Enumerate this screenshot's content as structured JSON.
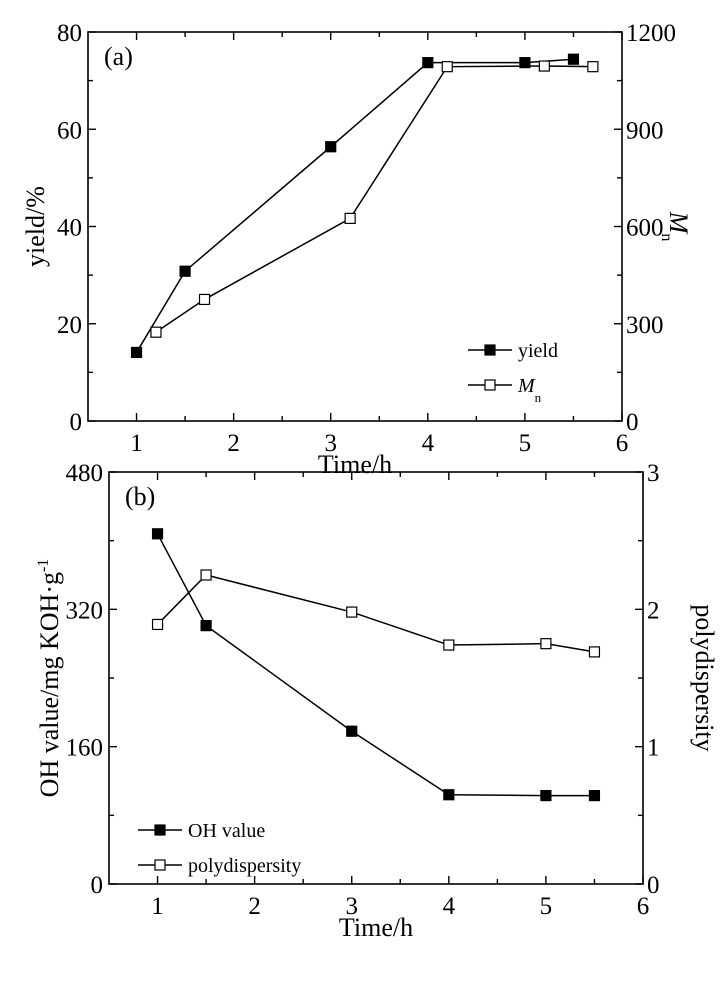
{
  "chart_data": [
    {
      "type": "line",
      "panel_label": "(a)",
      "xlabel": "Time/h",
      "ylabel": "yield/%",
      "y2label": "M",
      "y2label_sub": "n",
      "xlim": [
        0.5,
        6
      ],
      "ylim": [
        0,
        80
      ],
      "y2lim": [
        0,
        1200
      ],
      "xticks": [
        "1",
        "2",
        "3",
        "4",
        "5",
        "6"
      ],
      "yticks": [
        "0",
        "20",
        "40",
        "60",
        "80"
      ],
      "y2ticks": [
        "0",
        "300",
        "600",
        "900",
        "1200"
      ],
      "legend_position": "bottom-right",
      "series": [
        {
          "name": "yield",
          "axis": "left",
          "marker": "filled-square",
          "x": [
            1,
            1.5,
            3,
            4,
            5,
            5.5
          ],
          "y": [
            14.1,
            30.8,
            56.4,
            73.7,
            73.7,
            74.4
          ]
        },
        {
          "name": "M",
          "name_sub": "n",
          "axis": "right",
          "marker": "open-square",
          "x": [
            1.2,
            1.7,
            3.2,
            4.2,
            5.2,
            5.7
          ],
          "y": [
            274,
            375,
            625,
            1093,
            1095,
            1093
          ]
        }
      ]
    },
    {
      "type": "line",
      "panel_label": "(b)",
      "xlabel": "Time/h",
      "ylabel": "OH value/mg KOH·g",
      "ylabel_sup": "-1",
      "y2label": "polydispersity",
      "xlim": [
        0.5,
        6
      ],
      "ylim": [
        0,
        480
      ],
      "y2lim": [
        0,
        3
      ],
      "xticks": [
        "1",
        "2",
        "3",
        "4",
        "5",
        "6"
      ],
      "yticks": [
        "0",
        "160",
        "320",
        "480"
      ],
      "y2ticks": [
        "0",
        "1",
        "2",
        "3"
      ],
      "legend_position": "bottom-left",
      "series": [
        {
          "name": "OH value",
          "axis": "left",
          "marker": "filled-square",
          "x": [
            1,
            1.5,
            3,
            4,
            5,
            5.5
          ],
          "y": [
            408,
            301,
            178,
            104,
            103,
            103
          ]
        },
        {
          "name": "polydispersity",
          "axis": "right",
          "marker": "open-square",
          "x": [
            1,
            1.5,
            3,
            4,
            5,
            5.5
          ],
          "y": [
            1.89,
            2.25,
            1.98,
            1.74,
            1.75,
            1.69
          ]
        }
      ]
    }
  ]
}
